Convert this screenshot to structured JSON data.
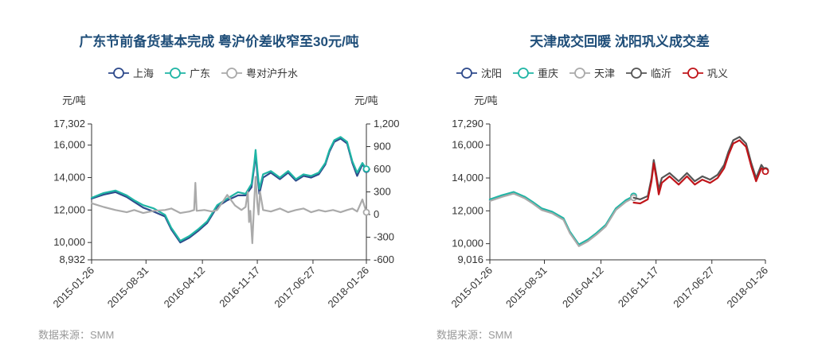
{
  "chart_data": [
    {
      "type": "line",
      "title": "广东节前备货基本完成 粤沪价差收窄至30元/吨",
      "source": "数据来源：SMM",
      "y_left_unit": "元/吨",
      "y_right_unit": "元/吨",
      "y_left_ticks": [
        "17,302",
        "16,000",
        "14,000",
        "12,000",
        "10,000",
        "8,932"
      ],
      "y_left_tick_values": [
        17302,
        16000,
        14000,
        12000,
        10000,
        8932
      ],
      "y_right_ticks": [
        "1,200",
        "900",
        "600",
        "300",
        "0",
        "-300",
        "-600"
      ],
      "y_right_tick_values": [
        1200,
        900,
        600,
        300,
        0,
        -300,
        -600
      ],
      "ylim_left": [
        8932,
        17302
      ],
      "ylim_right": [
        -600,
        1200
      ],
      "x_ticks": [
        "2015-01-26",
        "2015-08-31",
        "2016-04-12",
        "2016-11-17",
        "2017-06-27",
        "2018-01-26"
      ],
      "x_range": [
        "2015-01-26",
        "2018-01-26"
      ],
      "grid": false,
      "legend_position": "top-center",
      "series": [
        {
          "name": "上海",
          "axis": "left",
          "color": "#2e4a8b",
          "x": [
            "2015-01-26",
            "2015-03-15",
            "2015-05-01",
            "2015-06-15",
            "2015-07-15",
            "2015-08-20",
            "2015-10-01",
            "2015-11-15",
            "2015-12-10",
            "2016-01-15",
            "2016-02-20",
            "2016-03-25",
            "2016-05-01",
            "2016-06-10",
            "2016-07-20",
            "2016-09-01",
            "2016-10-01",
            "2016-10-25",
            "2016-11-05",
            "2016-11-10",
            "2016-11-17",
            "2016-11-25",
            "2016-12-10",
            "2017-01-10",
            "2017-02-15",
            "2017-03-20",
            "2017-04-20",
            "2017-05-20",
            "2017-06-20",
            "2017-07-20",
            "2017-08-15",
            "2017-09-01",
            "2017-09-20",
            "2017-10-15",
            "2017-11-10",
            "2017-12-01",
            "2017-12-20",
            "2018-01-10",
            "2018-01-26"
          ],
          "values": [
            12700,
            12950,
            13100,
            12800,
            12500,
            12150,
            11900,
            11600,
            10800,
            10000,
            10300,
            10700,
            11200,
            12200,
            12600,
            12900,
            12900,
            13400,
            14700,
            15500,
            14200,
            13000,
            14000,
            14300,
            13900,
            14300,
            13800,
            14100,
            14000,
            14200,
            14800,
            15600,
            16200,
            16400,
            16100,
            14900,
            14100,
            14800,
            14500
          ]
        },
        {
          "name": "广东",
          "axis": "left",
          "color": "#1fb5a5",
          "x": [
            "2015-01-26",
            "2015-03-15",
            "2015-05-01",
            "2015-06-15",
            "2015-07-15",
            "2015-08-20",
            "2015-10-01",
            "2015-11-15",
            "2015-12-10",
            "2016-01-15",
            "2016-02-20",
            "2016-03-25",
            "2016-05-01",
            "2016-06-10",
            "2016-07-20",
            "2016-09-01",
            "2016-10-01",
            "2016-10-25",
            "2016-11-05",
            "2016-11-10",
            "2016-11-17",
            "2016-11-25",
            "2016-12-10",
            "2017-01-10",
            "2017-02-15",
            "2017-03-20",
            "2017-04-20",
            "2017-05-20",
            "2017-06-20",
            "2017-07-20",
            "2017-08-15",
            "2017-09-01",
            "2017-09-20",
            "2017-10-15",
            "2017-11-10",
            "2017-12-01",
            "2017-12-20",
            "2018-01-10",
            "2018-01-26"
          ],
          "values": [
            12750,
            13050,
            13200,
            12900,
            12600,
            12300,
            12100,
            11700,
            10900,
            10100,
            10400,
            10800,
            11300,
            12300,
            12700,
            13100,
            13000,
            13600,
            14900,
            15700,
            14500,
            13300,
            14200,
            14400,
            14000,
            14400,
            13900,
            14200,
            14100,
            14300,
            14900,
            15700,
            16300,
            16500,
            16200,
            15000,
            14300,
            14900,
            14530
          ]
        },
        {
          "name": "粤对沪升水",
          "axis": "right",
          "color": "#aaaaaa",
          "x": [
            "2015-01-26",
            "2015-03-15",
            "2015-05-01",
            "2015-06-15",
            "2015-07-15",
            "2015-08-20",
            "2015-10-01",
            "2015-11-15",
            "2015-12-10",
            "2016-01-15",
            "2016-02-20",
            "2016-03-10",
            "2016-03-15",
            "2016-03-20",
            "2016-04-20",
            "2016-05-20",
            "2016-06-10",
            "2016-07-20",
            "2016-08-20",
            "2016-09-15",
            "2016-10-01",
            "2016-10-10",
            "2016-10-15",
            "2016-10-20",
            "2016-10-28",
            "2016-11-05",
            "2016-11-10",
            "2016-11-17",
            "2016-11-22",
            "2016-11-28",
            "2016-12-10",
            "2017-01-10",
            "2017-02-15",
            "2017-03-20",
            "2017-04-20",
            "2017-05-20",
            "2017-06-20",
            "2017-07-20",
            "2017-08-15",
            "2017-09-15",
            "2017-10-15",
            "2017-11-10",
            "2017-12-01",
            "2017-12-20",
            "2018-01-10",
            "2018-01-26"
          ],
          "values": [
            150,
            100,
            60,
            30,
            60,
            20,
            50,
            60,
            80,
            20,
            40,
            60,
            420,
            50,
            60,
            40,
            60,
            260,
            120,
            60,
            100,
            300,
            -100,
            50,
            -380,
            200,
            500,
            150,
            0,
            300,
            60,
            40,
            80,
            30,
            60,
            80,
            30,
            60,
            40,
            60,
            30,
            60,
            80,
            40,
            200,
            30
          ]
        }
      ]
    },
    {
      "type": "line",
      "title": "天津成交回暖 沈阳巩义成交差",
      "source": "数据来源：SMM",
      "y_left_unit": "元/吨",
      "y_left_ticks": [
        "17,290",
        "16,000",
        "14,000",
        "12,000",
        "10,000",
        "9,016"
      ],
      "y_left_tick_values": [
        17290,
        16000,
        14000,
        12000,
        10000,
        9016
      ],
      "ylim_left": [
        9016,
        17290
      ],
      "x_ticks": [
        "2015-01-26",
        "2015-08-31",
        "2016-04-12",
        "2016-11-17",
        "2017-06-27",
        "2018-01-26"
      ],
      "x_range": [
        "2015-01-26",
        "2018-01-26"
      ],
      "grid": false,
      "legend_position": "top-center",
      "series": [
        {
          "name": "沈阳",
          "color": "#2e4a8b",
          "x": [
            "2015-01-26",
            "2015-03-15",
            "2015-05-01",
            "2015-06-15",
            "2015-07-15",
            "2015-08-20",
            "2015-10-01",
            "2015-11-15",
            "2015-12-10",
            "2016-01-15",
            "2016-02-20",
            "2016-03-25",
            "2016-05-01",
            "2016-06-10",
            "2016-07-20",
            "2016-08-20"
          ],
          "values": [
            12650,
            12900,
            13100,
            12800,
            12500,
            12100,
            11900,
            11500,
            10700,
            9900,
            10200,
            10600,
            11100,
            12100,
            12600,
            12850
          ]
        },
        {
          "name": "重庆",
          "color": "#1fb5a5",
          "x": [
            "2015-01-26",
            "2015-03-15",
            "2015-05-01",
            "2015-06-15",
            "2015-07-15",
            "2015-08-20",
            "2015-10-01",
            "2015-11-15",
            "2015-12-10",
            "2016-01-15",
            "2016-02-20",
            "2016-03-25",
            "2016-05-01",
            "2016-06-10",
            "2016-07-20",
            "2016-08-20"
          ],
          "values": [
            12700,
            12950,
            13150,
            12850,
            12550,
            12150,
            11950,
            11550,
            10750,
            9950,
            10250,
            10650,
            11150,
            12150,
            12650,
            12900
          ]
        },
        {
          "name": "天津",
          "color": "#aaaaaa",
          "x": [
            "2015-01-26",
            "2015-03-15",
            "2015-05-01",
            "2015-06-15",
            "2015-07-15",
            "2015-08-20",
            "2015-10-01",
            "2015-11-15",
            "2015-12-10",
            "2016-01-15",
            "2016-02-20",
            "2016-03-25",
            "2016-05-01",
            "2016-06-10",
            "2016-07-20",
            "2016-08-20"
          ],
          "values": [
            12600,
            12850,
            13050,
            12750,
            12450,
            12050,
            11850,
            11450,
            10650,
            9850,
            10150,
            10550,
            11050,
            12050,
            12550,
            12800
          ]
        },
        {
          "name": "临沂",
          "color": "#555555",
          "x": [
            "2016-08-20",
            "2016-09-15",
            "2016-10-15",
            "2016-10-30",
            "2016-11-08",
            "2016-11-17",
            "2016-11-28",
            "2016-12-10",
            "2017-01-10",
            "2017-02-15",
            "2017-03-20",
            "2017-04-20",
            "2017-05-20",
            "2017-06-20",
            "2017-07-20",
            "2017-08-15",
            "2017-09-01",
            "2017-09-20",
            "2017-10-15",
            "2017-11-10",
            "2017-12-01",
            "2017-12-20",
            "2018-01-10",
            "2018-01-26"
          ],
          "values": [
            12800,
            12700,
            12900,
            14000,
            15100,
            14300,
            13300,
            14000,
            14300,
            13800,
            14300,
            13800,
            14100,
            13900,
            14200,
            14800,
            15600,
            16300,
            16500,
            16100,
            14900,
            14000,
            14800,
            14450
          ]
        },
        {
          "name": "巩义",
          "color": "#c0151a",
          "x": [
            "2016-08-20",
            "2016-09-15",
            "2016-10-15",
            "2016-10-30",
            "2016-11-08",
            "2016-11-17",
            "2016-11-28",
            "2016-12-10",
            "2017-01-10",
            "2017-02-15",
            "2017-03-20",
            "2017-04-20",
            "2017-05-20",
            "2017-06-20",
            "2017-07-20",
            "2017-08-15",
            "2017-09-01",
            "2017-09-20",
            "2017-10-15",
            "2017-11-10",
            "2017-12-01",
            "2017-12-20",
            "2018-01-10",
            "2018-01-26"
          ],
          "values": [
            12500,
            12450,
            12700,
            13800,
            14900,
            14100,
            13000,
            13700,
            14100,
            13600,
            14100,
            13600,
            13900,
            13700,
            14000,
            14600,
            15400,
            16100,
            16300,
            15900,
            14700,
            13800,
            14600,
            14400
          ]
        }
      ]
    }
  ]
}
